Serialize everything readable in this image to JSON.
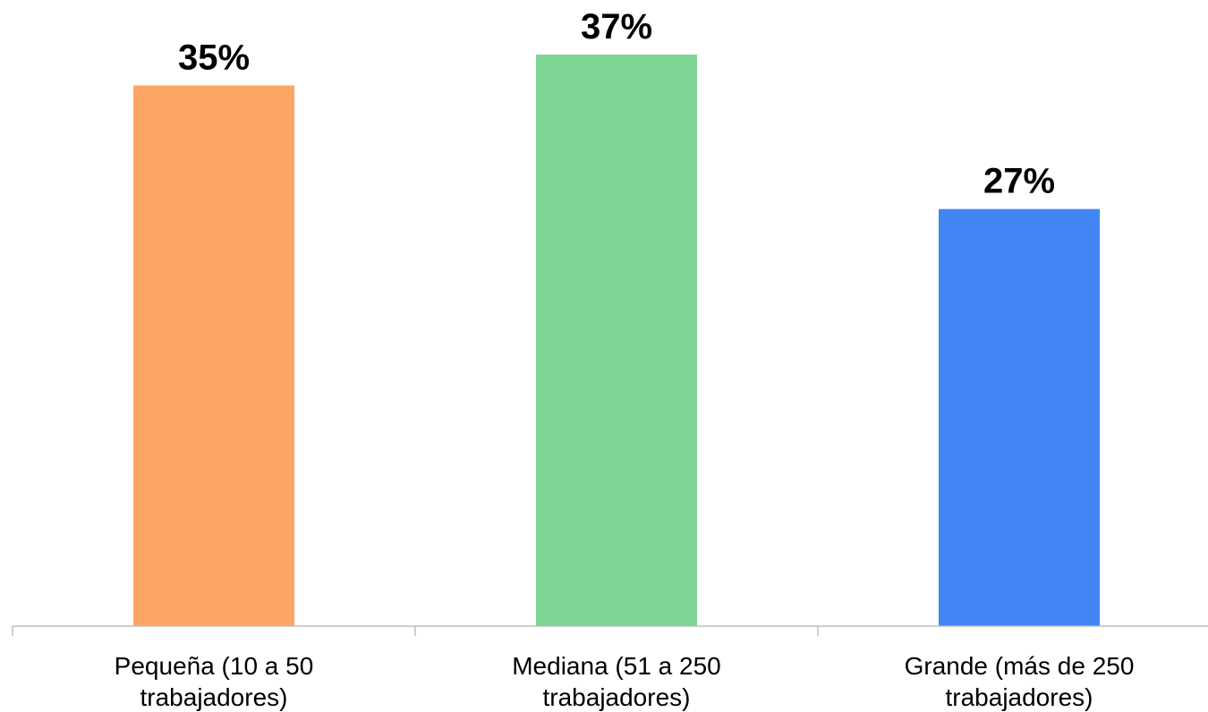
{
  "chart_data": {
    "type": "bar",
    "categories": [
      [
        "Pequeña (10 a 50",
        "trabajadores)"
      ],
      [
        "Mediana (51 a 250",
        "trabajadores)"
      ],
      [
        "Grande (más de 250",
        "trabajadores)"
      ]
    ],
    "values": [
      35,
      37,
      27
    ],
    "data_labels": [
      "35%",
      "37%",
      "27%"
    ],
    "colors": [
      "#FCA566",
      "#7DD693",
      "#4285F4"
    ],
    "title": "",
    "xlabel": "",
    "ylabel": "",
    "ylim": [
      0,
      40
    ],
    "grid": false,
    "legend": "none"
  }
}
